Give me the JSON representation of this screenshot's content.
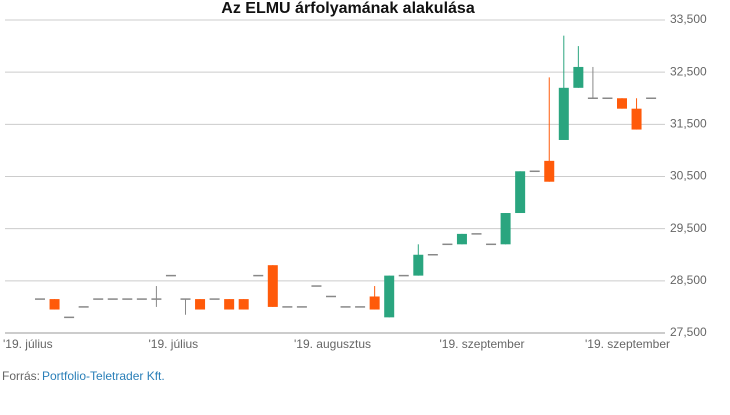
{
  "chart_data": {
    "type": "candlestick",
    "title": "Az ELMU árfolyamának alakulása",
    "categories": [
      "'19. július",
      null,
      null,
      null,
      null,
      null,
      null,
      null,
      null,
      null,
      "'19. július",
      null,
      null,
      null,
      null,
      null,
      null,
      null,
      null,
      null,
      "'19. augusztus",
      null,
      null,
      null,
      null,
      null,
      null,
      null,
      null,
      null,
      "'19. szeptember",
      null,
      null,
      null,
      null,
      null,
      null,
      null,
      null,
      null,
      "'19. szeptember",
      null,
      null
    ],
    "open": [
      28150,
      28150,
      27800,
      28000,
      28150,
      28150,
      28150,
      28150,
      28150,
      28600,
      28150,
      28150,
      28150,
      28150,
      28150,
      28600,
      28800,
      28000,
      28000,
      28400,
      28200,
      28000,
      28000,
      28200,
      27800,
      28600,
      28600,
      29000,
      29200,
      29200,
      29400,
      29200,
      29200,
      29800,
      30600,
      30800,
      31200,
      32200,
      32000,
      32000,
      32000,
      31800,
      32000
    ],
    "high": [
      28150,
      28150,
      27800,
      28000,
      28150,
      28150,
      28150,
      28150,
      28400,
      28600,
      28150,
      28150,
      28150,
      28150,
      28150,
      28600,
      28800,
      28000,
      28000,
      28400,
      28200,
      28000,
      28000,
      28400,
      28600,
      28600,
      29200,
      29000,
      29200,
      29400,
      29400,
      29200,
      29800,
      30600,
      30600,
      32400,
      33200,
      33000,
      32600,
      32000,
      32000,
      32000,
      32000
    ],
    "low": [
      28150,
      27950,
      27800,
      28000,
      28150,
      28150,
      28150,
      28150,
      28000,
      28600,
      27850,
      27950,
      28150,
      27950,
      27950,
      28600,
      28000,
      28000,
      28000,
      28400,
      28200,
      28000,
      28000,
      27950,
      27800,
      28600,
      28600,
      29000,
      29200,
      29200,
      29400,
      29200,
      29200,
      29800,
      30600,
      30400,
      31200,
      32200,
      32000,
      32000,
      31800,
      31400,
      32000
    ],
    "close": [
      28150,
      27950,
      27800,
      28000,
      28150,
      28150,
      28150,
      28150,
      28150,
      28600,
      28150,
      27950,
      28150,
      27950,
      27950,
      28600,
      28000,
      28000,
      28000,
      28400,
      28200,
      28000,
      28000,
      27950,
      28600,
      28600,
      29000,
      29000,
      29200,
      29400,
      29400,
      29200,
      29800,
      30600,
      30600,
      30400,
      32200,
      32600,
      32000,
      32000,
      31800,
      31400,
      32000
    ],
    "up_color": "#2aa57f",
    "down_color": "#ff5a0a",
    "flat_color": "#888888",
    "ylim": [
      27500,
      33500
    ],
    "yticks": [
      {
        "value": 27500,
        "label": "27,500"
      },
      {
        "value": 28500,
        "label": "28,500"
      },
      {
        "value": 29500,
        "label": "29,500"
      },
      {
        "value": 30500,
        "label": "30,500"
      },
      {
        "value": 31500,
        "label": "31,500"
      },
      {
        "value": 32500,
        "label": "32,500"
      },
      {
        "value": 33500,
        "label": "33,500"
      }
    ],
    "grid": true,
    "source_label": "Forrás:",
    "source": "Portfolio-Teletrader Kft."
  }
}
